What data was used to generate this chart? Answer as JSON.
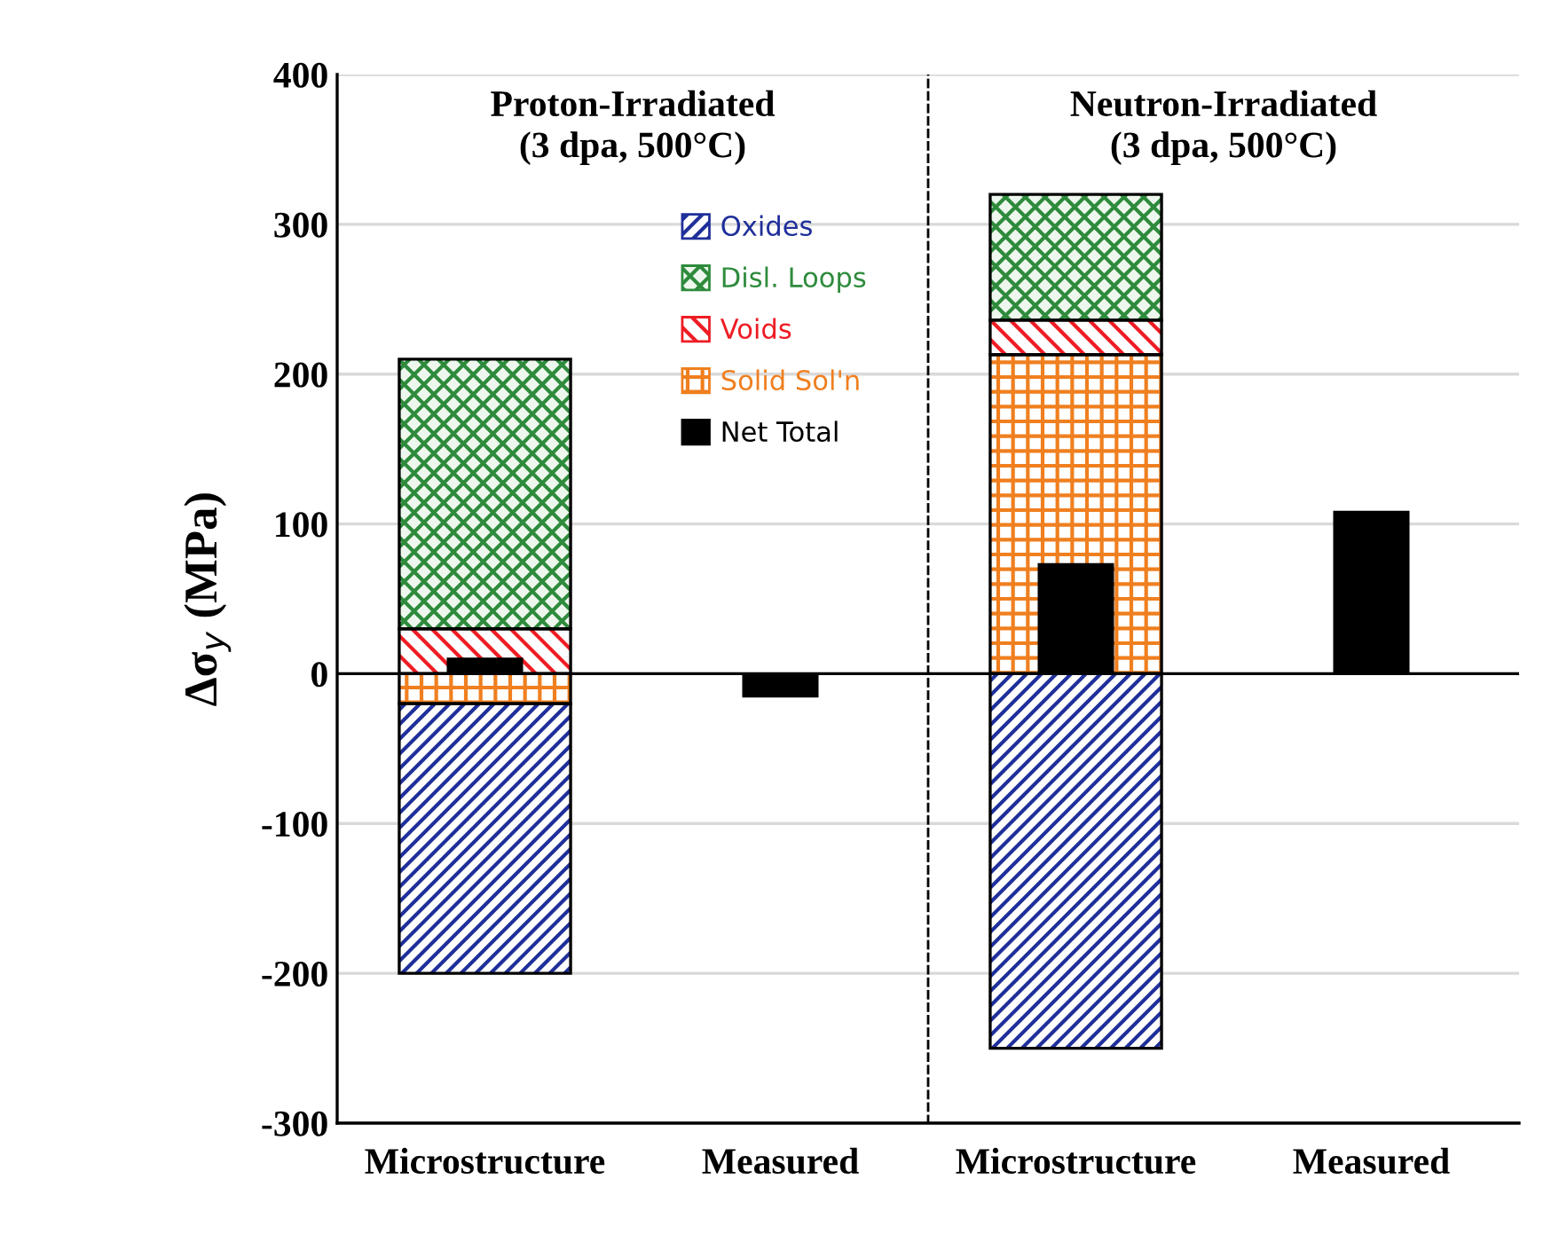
{
  "chart_data": {
    "type": "bar",
    "categories": [
      "Microstructure",
      "Measured",
      "Microstructure",
      "Measured"
    ],
    "ylabel": "Δσ$_{y}$ (MPa)",
    "annotations": [
      "Proton-Irradiated\n(3 dpa, 500°C)",
      "Neutron-Irradiated\n(3 dpa, 500°C)"
    ],
    "series": [
      {
        "name": "Solid Sol'n",
        "color": "#f07f1f",
        "values": [
          -20,
          null,
          213,
          null
        ],
        "base": [
          0,
          null,
          0,
          null
        ]
      },
      {
        "name": "Voids",
        "color": "#ee1c24",
        "values": [
          30,
          null,
          23,
          null
        ],
        "base": [
          0,
          null,
          213,
          null
        ]
      },
      {
        "name": "Disl. Loops",
        "color": "#2e8b3c",
        "values": [
          180,
          null,
          84,
          null
        ],
        "base": [
          30,
          null,
          236,
          null
        ]
      },
      {
        "name": "Oxides",
        "color": "#1f2f9a",
        "values": [
          -180,
          null,
          -250,
          null
        ],
        "base": [
          -20,
          null,
          0,
          null
        ]
      },
      {
        "name": "Net Total",
        "color": "#000000",
        "values": [
          10,
          -15,
          73,
          108
        ]
      }
    ],
    "ylim": [
      -300,
      400
    ],
    "yticks": [
      -300,
      -200,
      -100,
      0,
      100,
      200,
      300,
      400
    ],
    "grid": "y",
    "legend": "top"
  }
}
